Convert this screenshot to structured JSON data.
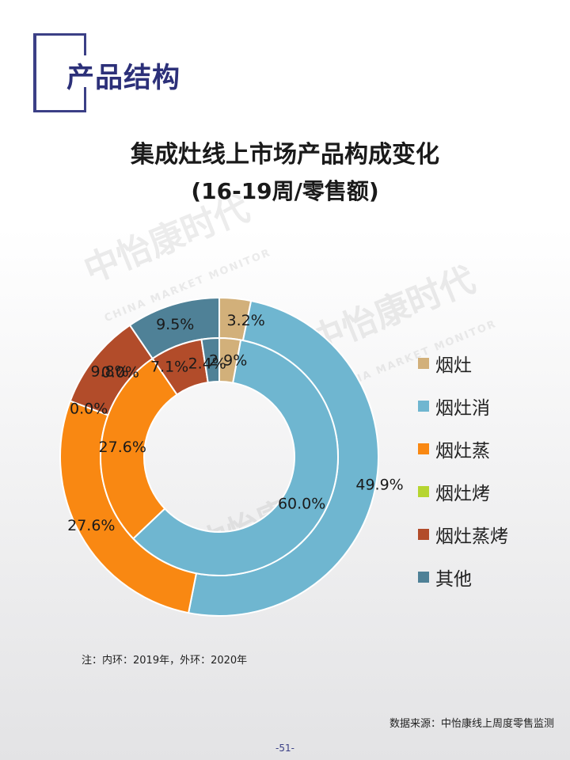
{
  "page": {
    "section_title": "产品结构",
    "note": "注：内环：2019年，外环：2020年",
    "source": "数据来源：中怡康线上周度零售监测",
    "page_number": "-51-",
    "watermark": "中怡康时代",
    "watermark_sub": "CHINA MARKET MONITOR"
  },
  "chart_data": {
    "type": "donut",
    "title": "集成灶线上市场产品构成变化",
    "subtitle": "(16-19周/零售额)",
    "categories": [
      "烟灶",
      "烟灶消",
      "烟灶蒸",
      "烟灶烤",
      "烟灶蒸烤",
      "其他"
    ],
    "colors": [
      "#D2B07A",
      "#6FB6D0",
      "#F98812",
      "#B6D530",
      "#B24C2A",
      "#4F8197"
    ],
    "series": [
      {
        "name": "2020年",
        "ring": "outer",
        "values": [
          3.2,
          49.9,
          27.6,
          0.0,
          9.8,
          9.5
        ],
        "labels": [
          "3.2%",
          "49.9%",
          "27.6%",
          "0.0%",
          "9.8%",
          "9.5%"
        ]
      },
      {
        "name": "2019年",
        "ring": "inner",
        "values": [
          2.9,
          60.0,
          27.6,
          0.0,
          7.1,
          2.4
        ],
        "labels": [
          "2.9%",
          "60.0%",
          "27.6%",
          "0.0%",
          "7.1%",
          "2.4%"
        ]
      }
    ],
    "legend_position": "right",
    "value_unit": "%"
  }
}
